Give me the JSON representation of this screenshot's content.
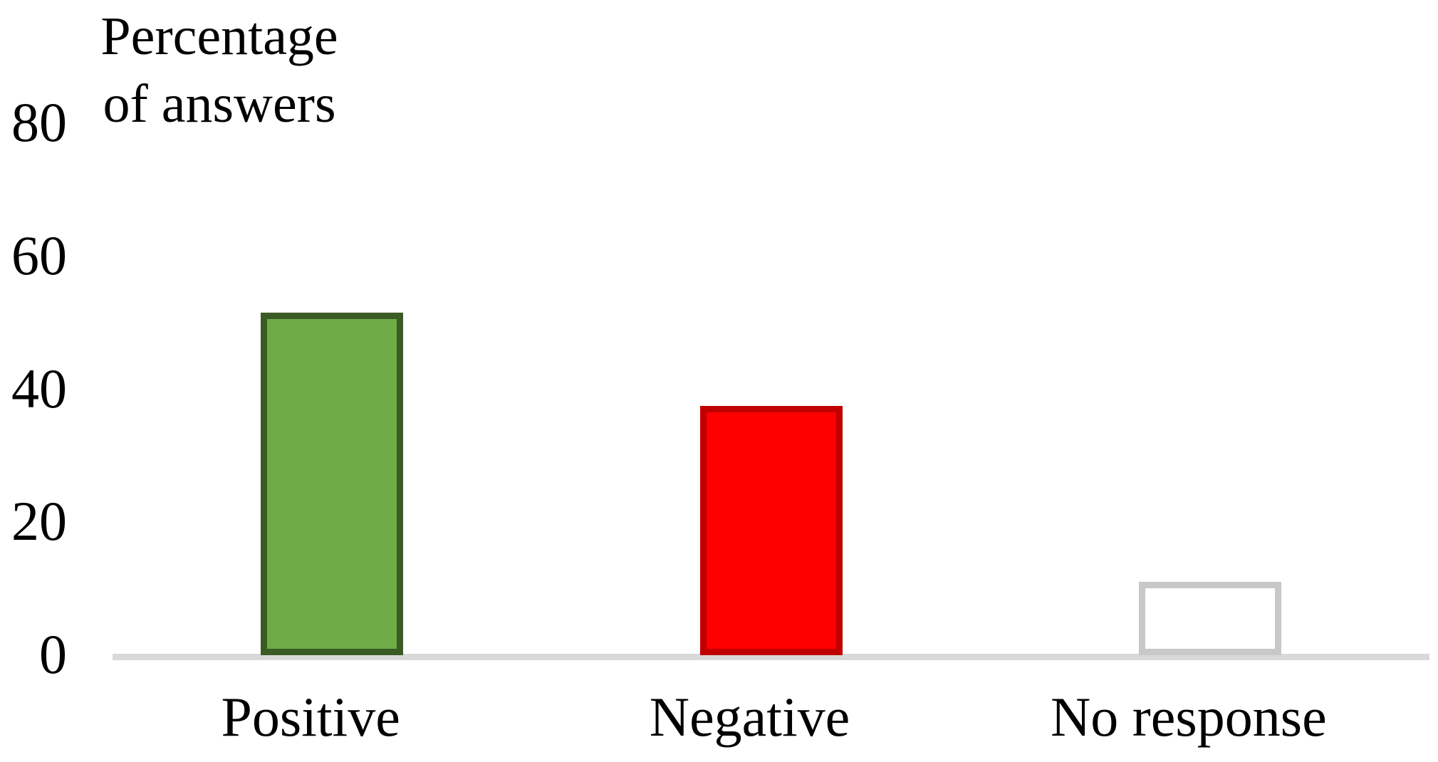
{
  "chart_data": {
    "type": "bar",
    "title": "Percentage of answers",
    "title_lines": [
      "Percentage",
      "of answers"
    ],
    "xlabel": "",
    "ylabel": "Percentage of answers",
    "categories": [
      "Positive",
      "Negative",
      "No response"
    ],
    "values": [
      51.5,
      37.5,
      11
    ],
    "ylim": [
      0,
      80
    ],
    "yticks": [
      0,
      20,
      40,
      60,
      80
    ],
    "grid": false,
    "legend": false,
    "bar_styles": [
      {
        "fill": "#6FAC47",
        "border": "#3A5B24"
      },
      {
        "fill": "#FE0000",
        "border": "#C00000"
      },
      {
        "fill": "#FFFFFF",
        "border": "#C8C8C8"
      }
    ],
    "axis_line_color": "#D9D9D9",
    "text_color": "#000000",
    "background": "#FFFFFF"
  }
}
